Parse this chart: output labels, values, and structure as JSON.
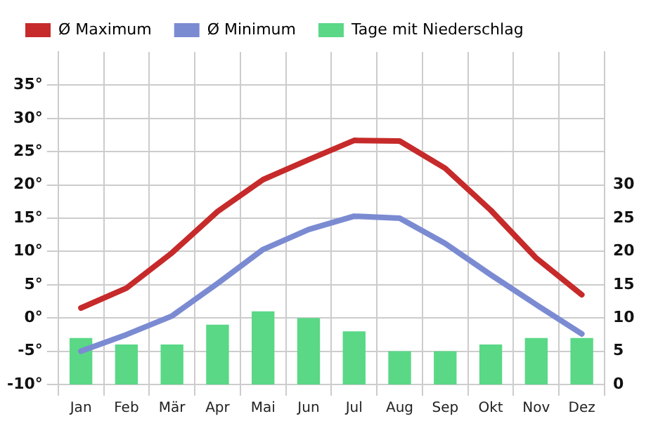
{
  "chart_data": {
    "type": "line",
    "categories": [
      "Jan",
      "Feb",
      "Mär",
      "Apr",
      "Mai",
      "Jun",
      "Jul",
      "Aug",
      "Sep",
      "Okt",
      "Nov",
      "Dez"
    ],
    "series": [
      {
        "name": "Ø Maximum",
        "color": "#c62a2a",
        "values": [
          1.5,
          4.5,
          9.8,
          16,
          20.8,
          23.8,
          26.7,
          26.6,
          22.5,
          16.2,
          9,
          3.5
        ]
      },
      {
        "name": "Ø Minimum",
        "color": "#7b8bd2",
        "values": [
          -5,
          -2.5,
          0.3,
          5.2,
          10.3,
          13.3,
          15.3,
          15,
          11.2,
          6.5,
          2,
          -2.4
        ]
      },
      {
        "name": "Tage mit Niederschlag",
        "type": "bar",
        "axis": "y2",
        "color": "#5ad886",
        "values": [
          7,
          6,
          6,
          9,
          11,
          10,
          8,
          5,
          5,
          6,
          7,
          7
        ]
      }
    ],
    "ylim": [
      -10,
      40
    ],
    "yticks": [
      {
        "value": -10,
        "label": "-10°"
      },
      {
        "value": -5,
        "label": "-5°"
      },
      {
        "value": 0,
        "label": "0°"
      },
      {
        "value": 5,
        "label": "5°"
      },
      {
        "value": 10,
        "label": "10°"
      },
      {
        "value": 15,
        "label": "15°"
      },
      {
        "value": 20,
        "label": "20°"
      },
      {
        "value": 25,
        "label": "25°"
      },
      {
        "value": 30,
        "label": "30°"
      },
      {
        "value": 35,
        "label": "35°"
      }
    ],
    "y2lim": [
      0,
      50
    ],
    "y2ticks": [
      0,
      5,
      10,
      15,
      20,
      25,
      30
    ],
    "grid": true,
    "legend": "top left",
    "marker": "none",
    "line_style": "solid"
  }
}
